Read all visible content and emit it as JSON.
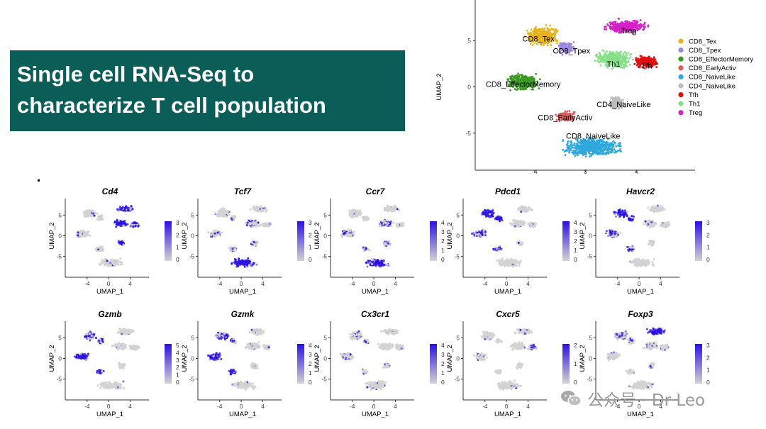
{
  "slide": {
    "title_line1": "Single cell RNA-Seq to",
    "title_line2": "characterize T cell population"
  },
  "watermark": {
    "text": "公众号 · Dr Leo",
    "icon": "wechat-icon"
  },
  "colors": {
    "title_bg": "#0b5e57",
    "feature_high": "#2a12e0",
    "feature_low": "#d3d3d3"
  },
  "chart_data": [
    {
      "type": "scatter",
      "subtype": "umap_cluster",
      "xlabel": "",
      "ylabel": "UMAP_2",
      "xticks": [
        "-4",
        "0",
        "4"
      ],
      "yticks": [
        "5",
        "0",
        "-5"
      ],
      "legend_placement": "right",
      "clusters": [
        {
          "name": "CD8_Tex",
          "color": "#e6b31e",
          "centroid": [
            -3.4,
            5.5
          ]
        },
        {
          "name": "CD8_Tpex",
          "color": "#9b86e0",
          "centroid": [
            -1.5,
            4.2
          ]
        },
        {
          "name": "CD8_EffectorMemory",
          "color": "#3c9a24",
          "centroid": [
            -4.9,
            0.5
          ]
        },
        {
          "name": "CD8_EarlyActiv",
          "color": "#de5a5a",
          "centroid": [
            -1.6,
            -3.2
          ]
        },
        {
          "name": "CD8_NaiveLike",
          "color": "#2fa8dd",
          "centroid": [
            0.5,
            -6.5
          ]
        },
        {
          "name": "CD4_NaiveLike",
          "color": "#bdbdbd",
          "centroid": [
            2.4,
            -1.8
          ]
        },
        {
          "name": "Tfh",
          "color": "#e01010",
          "centroid": [
            4.8,
            2.7
          ]
        },
        {
          "name": "Th1",
          "color": "#86e089",
          "centroid": [
            2.2,
            3.0
          ]
        },
        {
          "name": "Treg",
          "color": "#d61fc6",
          "centroid": [
            3.2,
            6.5
          ]
        }
      ],
      "legend_entries": [
        "CD8_Tex",
        "CD8_Tpex",
        "CD8_EffectorMemory",
        "CD8_EarlyActiv",
        "CD8_NaiveLike",
        "CD4_NaiveLike",
        "Tfh",
        "Th1",
        "Treg"
      ],
      "cluster_labels": [
        {
          "text": "CD8_Tex",
          "at": [
            -3.7,
            4.9
          ]
        },
        {
          "text": "CD8_Tpex",
          "at": [
            -1.1,
            3.6
          ]
        },
        {
          "text": "Treg",
          "at": [
            3.4,
            5.8
          ]
        },
        {
          "text": "Th1",
          "at": [
            2.2,
            2.2
          ]
        },
        {
          "text": "Tfh",
          "at": [
            4.8,
            2.0
          ]
        },
        {
          "text": "CD8_EffectorMemory",
          "at": [
            -4.9,
            0.0
          ]
        },
        {
          "text": "CD4_NaiveLike",
          "at": [
            3.0,
            -2.2
          ]
        },
        {
          "text": "CD8_EarlyActiv",
          "at": [
            -1.6,
            -3.6
          ]
        },
        {
          "text": "CD8_NaiveLike",
          "at": [
            0.6,
            -5.6
          ]
        }
      ]
    },
    {
      "type": "scatter",
      "subtype": "feature_plots",
      "xlabel": "UMAP_1",
      "ylabel": "UMAP_2",
      "xticks": [
        "-4",
        "0",
        "4"
      ],
      "yticks": [
        "5",
        "0",
        "-5"
      ],
      "panels": [
        {
          "gene": "Cd4",
          "max": 3,
          "cb_ticks": [
            "3",
            "2",
            "1",
            "0"
          ],
          "high_region": "CD4"
        },
        {
          "gene": "Tcf7",
          "max": 3,
          "cb_ticks": [
            "3",
            "2",
            "1",
            "0"
          ],
          "high_region": "Naive"
        },
        {
          "gene": "Ccr7",
          "max": 4,
          "cb_ticks": [
            "4",
            "3",
            "2",
            "1",
            "0"
          ],
          "high_region": "Naive"
        },
        {
          "gene": "Pdcd1",
          "max": 4,
          "cb_ticks": [
            "4",
            "3",
            "2",
            "1",
            "0"
          ],
          "high_region": "Exhausted"
        },
        {
          "gene": "Havcr2",
          "max": 3,
          "cb_ticks": [
            "3",
            "2",
            "1",
            "0"
          ],
          "high_region": "Exhausted"
        },
        {
          "gene": "Gzmb",
          "max": 5,
          "cb_ticks": [
            "5",
            "4",
            "3",
            "2",
            "1",
            "0"
          ],
          "high_region": "Effector"
        },
        {
          "gene": "Gzmk",
          "max": 4,
          "cb_ticks": [
            "4",
            "3",
            "2",
            "1",
            "0"
          ],
          "high_region": "Effector"
        },
        {
          "gene": "Cx3cr1",
          "max": 4,
          "cb_ticks": [
            "4",
            "3",
            "2",
            "1",
            "0"
          ],
          "high_region": "Sparse"
        },
        {
          "gene": "Cxcr5",
          "max": 2,
          "cb_ticks": [
            "2",
            "1",
            "0"
          ],
          "high_region": "Tfh"
        },
        {
          "gene": "Foxp3",
          "max": 3,
          "cb_ticks": [
            "3",
            "2",
            "1",
            "0"
          ],
          "high_region": "Treg"
        }
      ]
    }
  ]
}
